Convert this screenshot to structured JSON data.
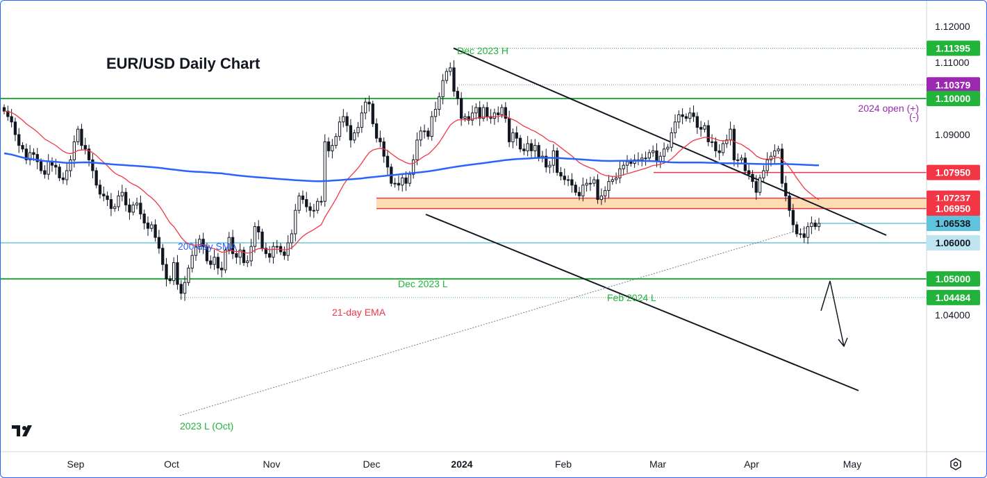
{
  "chart_data": {
    "type": "candlestick",
    "title": "EUR/USD Daily Chart",
    "ylim": [
      1.0395,
      1.1225
    ],
    "y_ticks": [
      "1.12000",
      "1.11000",
      "1.09000",
      "1.04000"
    ],
    "x_ticks": [
      "Sep",
      "Oct",
      "Nov",
      "Dec",
      "2024",
      "Feb",
      "Mar",
      "Apr",
      "May"
    ],
    "candles_close": [
      1.0965,
      1.095,
      1.0935,
      1.09,
      1.087,
      1.086,
      1.083,
      1.085,
      1.0845,
      1.0825,
      1.08,
      1.079,
      1.0825,
      1.0815,
      1.081,
      1.078,
      1.0775,
      1.08,
      1.083,
      1.088,
      1.0915,
      1.087,
      1.086,
      1.083,
      1.08,
      1.076,
      1.0735,
      1.073,
      1.072,
      1.0695,
      1.07,
      1.073,
      1.074,
      1.0705,
      1.0685,
      1.0705,
      1.071,
      1.068,
      1.0655,
      1.064,
      1.065,
      1.0615,
      1.0585,
      1.054,
      1.05,
      1.0495,
      1.0545,
      1.0485,
      1.046,
      1.049,
      1.053,
      1.0565,
      1.059,
      1.061,
      1.059,
      1.055,
      1.054,
      1.056,
      1.053,
      1.0525,
      1.058,
      1.0615,
      1.057,
      1.056,
      1.058,
      1.0545,
      1.055,
      1.059,
      1.0645,
      1.063,
      1.0585,
      1.057,
      1.056,
      1.059,
      1.059,
      1.0575,
      1.0565,
      1.06,
      1.0625,
      1.069,
      1.073,
      1.072,
      1.07,
      1.069,
      1.069,
      1.0715,
      1.0715,
      1.088,
      1.0855,
      1.087,
      1.0895,
      1.0935,
      1.095,
      1.0925,
      1.0885,
      1.0905,
      1.092,
      1.096,
      1.099,
      1.0985,
      1.093,
      1.089,
      1.088,
      1.084,
      1.081,
      1.0765,
      1.0765,
      1.076,
      1.078,
      1.0765,
      1.079,
      1.083,
      1.0885,
      1.091,
      1.091,
      1.0895,
      1.095,
      1.097,
      1.1005,
      1.105,
      1.1075,
      1.1085,
      1.102,
      1.1,
      1.0945,
      1.095,
      1.094,
      1.096,
      1.0975,
      1.0945,
      1.0975,
      1.095,
      1.0945,
      1.096,
      1.0955,
      1.0975,
      1.0945,
      1.088,
      1.0905,
      1.089,
      1.086,
      1.0855,
      1.0875,
      1.0855,
      1.087,
      1.0835,
      1.084,
      1.081,
      1.0815,
      1.0855,
      1.0795,
      1.0785,
      1.0775,
      1.0775,
      1.076,
      1.074,
      1.073,
      1.076,
      1.0765,
      1.0765,
      1.0775,
      1.072,
      1.073,
      1.0745,
      1.077,
      1.0775,
      1.078,
      1.0805,
      1.0815,
      1.0825,
      1.082,
      1.083,
      1.083,
      1.0835,
      1.0835,
      1.085,
      1.0855,
      1.0825,
      1.084,
      1.086,
      1.0865,
      1.0905,
      1.0935,
      1.0955,
      1.095,
      1.0945,
      1.096,
      1.095,
      1.092,
      1.0915,
      1.0925,
      1.088,
      1.088,
      1.0855,
      1.085,
      1.0875,
      1.0885,
      1.0915,
      1.083,
      1.083,
      1.0835,
      1.08,
      1.079,
      1.077,
      1.074,
      1.078,
      1.08,
      1.083,
      1.084,
      1.0855,
      1.086,
      1.0765,
      1.073,
      1.069,
      1.065,
      1.0625,
      1.0625,
      1.0615,
      1.0645,
      1.0655,
      1.0645,
      1.0654
    ],
    "levels": [
      {
        "value": 1.11395,
        "label": "1.11395",
        "note": "Dec 2023 H",
        "color": "#4caf50"
      },
      {
        "value": 1.10379,
        "label": "1.10379",
        "note": "2024 open (+)",
        "color": "#9c27b0"
      },
      {
        "value": 1.1,
        "label": "1.10000",
        "color": "#22b33a"
      },
      {
        "value": 1.0795,
        "label": "1.07950",
        "color": "#f23645"
      },
      {
        "value": 1.07237,
        "label": "1.07237",
        "color": "#f23645"
      },
      {
        "value": 1.0695,
        "label": "1.06950",
        "color": "#f23645"
      },
      {
        "value": 1.06538,
        "label": "1.06538",
        "color": "#26a7c4"
      },
      {
        "value": 1.06,
        "label": "1.06000",
        "color": "#26a7c4"
      },
      {
        "value": 1.05,
        "label": "1.05000",
        "color": "#22b33a"
      },
      {
        "value": 1.04484,
        "label": "1.04484",
        "note": "2023 L (Oct)",
        "color": "#4caf50"
      }
    ],
    "annotations": {
      "sma": "200-day SMA",
      "ema": "21-day EMA",
      "dec_low": "Dec 2023 L",
      "feb_low": "Feb 2024 L",
      "open_minus": "(-)"
    },
    "colors": {
      "up": "#ffffff",
      "down": "#131722",
      "sma": "#2962ff",
      "ema": "#f23645",
      "support_zone": "#fcd9a8"
    }
  },
  "ui": {
    "logo": "TV",
    "settings_icon": "gear-icon"
  }
}
